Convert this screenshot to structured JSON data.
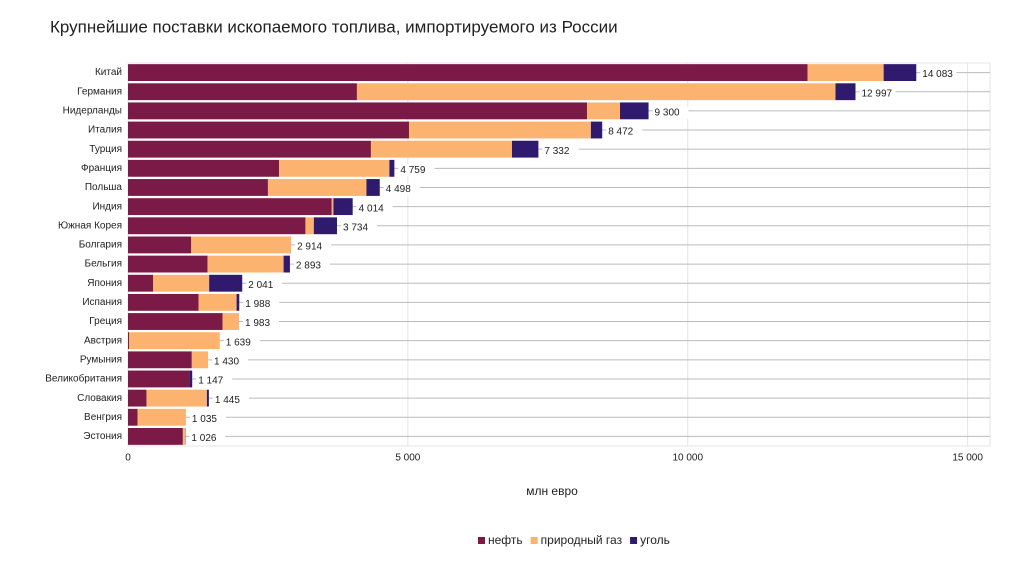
{
  "chart_data": {
    "type": "stacked-bar-horizontal",
    "title": "Крупнейшие поставки ископаемого топлива, импортируемого из России",
    "xlabel": "млн евро",
    "categories": [
      "Китай",
      "Германия",
      "Нидерланды",
      "Италия",
      "Турция",
      "Франция",
      "Польша",
      "Индия",
      "Южная Корея",
      "Болгария",
      "Бельгия",
      "Япония",
      "Испания",
      "Греция",
      "Австрия",
      "Румыния",
      "Великобритания",
      "Словакия",
      "Венгрия",
      "Эстония"
    ],
    "series": [
      {
        "name": "нефть",
        "color": "#7b1a47",
        "values": [
          12140,
          4090,
          8200,
          5020,
          4340,
          2700,
          2500,
          3640,
          3170,
          1130,
          1420,
          450,
          1260,
          1690,
          20,
          1140,
          1100,
          330,
          170,
          980
        ]
      },
      {
        "name": "природный газ",
        "color": "#fbb36f",
        "values": [
          1360,
          8550,
          590,
          3250,
          2520,
          1970,
          1760,
          30,
          150,
          1784,
          1360,
          1000,
          680,
          293,
          1619,
          290,
          0,
          1080,
          865,
          40
        ]
      },
      {
        "name": "уголь",
        "color": "#2f1a6e",
        "values": [
          583,
          357,
          510,
          202,
          472,
          89,
          238,
          344,
          414,
          0,
          113,
          591,
          48,
          0,
          0,
          0,
          47,
          35,
          0,
          6
        ]
      }
    ],
    "totals": [
      14083,
      12997,
      9300,
      8472,
      7332,
      4759,
      4498,
      4014,
      3734,
      2914,
      2893,
      2041,
      1988,
      1983,
      1639,
      1430,
      1147,
      1445,
      1035,
      1026
    ],
    "total_labels": [
      "14 083",
      "12 997",
      "9 300",
      "8 472",
      "7 332",
      "4 759",
      "4 498",
      "4 014",
      "3 734",
      "2 914",
      "2 893",
      "2 041",
      "1 988",
      "1 983",
      "1 639",
      "1 430",
      "1 147",
      "1 445",
      "1 035",
      "1 026"
    ],
    "xlim": [
      0,
      15400
    ],
    "xticks": [
      0,
      {
        "value": 5000,
        "label": "5 000"
      },
      {
        "value": 10000,
        "label": "10 000"
      },
      {
        "value": 15000,
        "label": "15 000"
      }
    ],
    "grid": true,
    "legend": "bottom"
  }
}
